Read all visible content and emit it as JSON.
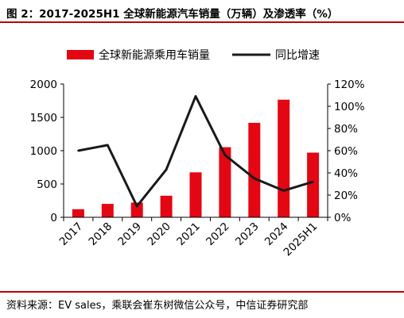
{
  "header": {
    "title": "图 2：2017-2025H1 全球新能源汽车销量（万辆）及渗透率（%）"
  },
  "footer": {
    "source": "资料来源：EV sales，乘联会崔东树微信公众号，中信证券研究部"
  },
  "colors": {
    "bar": "#e30613",
    "line": "#1a1a1a",
    "rule": "#c00000"
  },
  "chart_data": {
    "type": "bar",
    "title": "图 2：2017-2025H1 全球新能源汽车销量（万辆）及渗透率（%）",
    "categories": [
      "2017",
      "2018",
      "2019",
      "2020",
      "2021",
      "2022",
      "2023",
      "2024",
      "2025H1"
    ],
    "series": [
      {
        "name": "全球新能源乘用车销量",
        "type": "bar",
        "axis": "left",
        "values": [
          122,
          201,
          221,
          324,
          675,
          1052,
          1418,
          1766,
          970
        ]
      },
      {
        "name": "同比增速",
        "type": "line",
        "axis": "right",
        "values": [
          0.6,
          0.65,
          0.1,
          0.43,
          1.09,
          0.56,
          0.35,
          0.24,
          0.32
        ]
      }
    ],
    "ylim": [
      0,
      2000
    ],
    "yticks": [
      "0",
      "500",
      "1000",
      "1500",
      "2000"
    ],
    "y2lim": [
      0,
      1.2
    ],
    "y2ticks": [
      "0%",
      "20%",
      "40%",
      "60%",
      "80%",
      "100%",
      "120%"
    ],
    "legend": "top",
    "grid": false
  }
}
